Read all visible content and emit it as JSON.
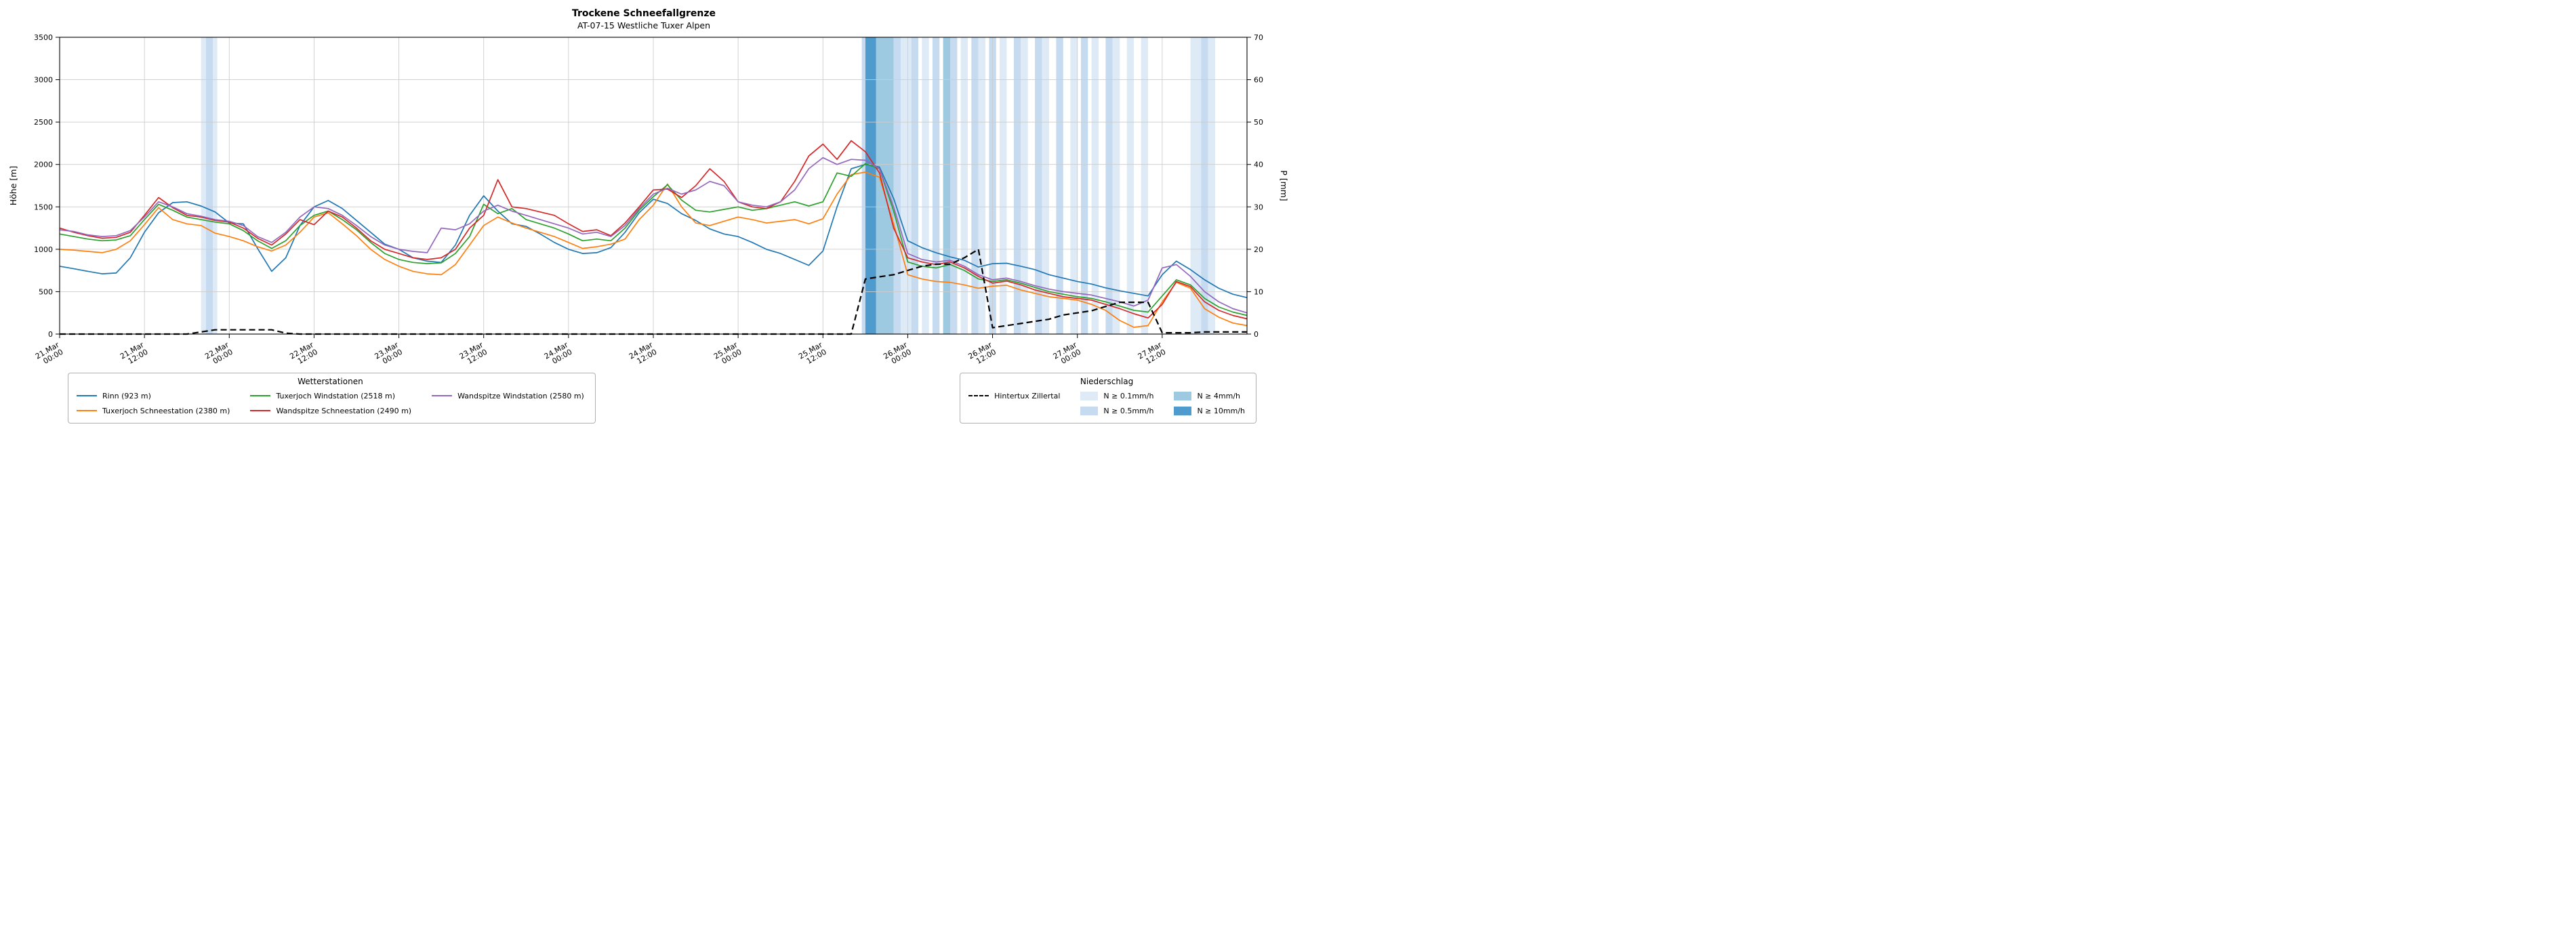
{
  "title": "Trockene Schneefallgrenze",
  "subtitle": "AT-07-15 Westliche Tuxer Alpen",
  "axes": {
    "y_left_label": "Höhe [m]",
    "y_right_label": "P [mm]",
    "y_left_ticks": [
      0,
      500,
      1000,
      1500,
      2000,
      2500,
      3000,
      3500
    ],
    "y_right_ticks": [
      0,
      10,
      20,
      30,
      40,
      50,
      60,
      70
    ],
    "x_tick_hours": [
      0,
      12,
      24,
      36,
      48,
      60,
      72,
      84,
      96,
      108,
      120,
      132,
      144,
      156
    ],
    "x_tick_labels": [
      "21.Mar 00:00",
      "21.Mar 12:00",
      "22.Mar 00:00",
      "22.Mar 12:00",
      "23.Mar 00:00",
      "23.Mar 12:00",
      "24.Mar 00:00",
      "24.Mar 12:00",
      "25.Mar 00:00",
      "25.Mar 12:00",
      "26.Mar 00:00",
      "26.Mar 12:00",
      "27.Mar 00:00",
      "27.Mar 12:00"
    ]
  },
  "chart_data": {
    "type": "line",
    "title": "Trockene Schneefallgrenze",
    "subtitle": "AT-07-15 Westliche Tuxer Alpen",
    "xlabel": "",
    "ylabel_left": "Höhe [m]",
    "ylabel_right": "P [mm]",
    "x_unit": "hours since 21 Mar 00:00",
    "x_range": [
      0,
      168
    ],
    "ylim_left": [
      0,
      3500
    ],
    "ylim_right": [
      0,
      70
    ],
    "grid": true,
    "x": [
      0,
      2,
      4,
      6,
      8,
      10,
      12,
      14,
      16,
      18,
      20,
      22,
      24,
      26,
      28,
      30,
      32,
      34,
      36,
      38,
      40,
      42,
      44,
      46,
      48,
      50,
      52,
      54,
      56,
      58,
      60,
      62,
      64,
      66,
      68,
      70,
      72,
      74,
      76,
      78,
      80,
      82,
      84,
      86,
      88,
      90,
      92,
      94,
      96,
      98,
      100,
      102,
      104,
      106,
      108,
      110,
      112,
      114,
      116,
      118,
      120,
      122,
      124,
      126,
      128,
      130,
      132,
      134,
      136,
      138,
      140,
      142,
      144,
      146,
      148,
      150,
      152,
      154,
      156,
      158,
      160,
      162,
      164,
      166,
      168
    ],
    "series": [
      {
        "name": "Rinn (923 m)",
        "color": "#1f77b4",
        "axis": "left",
        "style": "solid",
        "values": [
          800,
          770,
          740,
          710,
          720,
          900,
          1200,
          1430,
          1550,
          1560,
          1510,
          1440,
          1310,
          1300,
          1010,
          740,
          900,
          1280,
          1500,
          1575,
          1480,
          1340,
          1200,
          1060,
          1000,
          900,
          860,
          845,
          1050,
          1400,
          1630,
          1450,
          1300,
          1270,
          1180,
          1080,
          1000,
          950,
          960,
          1020,
          1200,
          1430,
          1590,
          1540,
          1420,
          1340,
          1240,
          1180,
          1150,
          1080,
          1000,
          950,
          880,
          810,
          980,
          1500,
          1950,
          2000,
          1970,
          1600,
          1100,
          1020,
          960,
          910,
          870,
          790,
          830,
          835,
          800,
          760,
          700,
          660,
          620,
          590,
          545,
          510,
          480,
          450,
          700,
          860,
          760,
          640,
          540,
          470,
          430
        ]
      },
      {
        "name": "Tuxerjoch Schneestation (2380 m)",
        "color": "#ff7f0e",
        "axis": "left",
        "style": "solid",
        "values": [
          1000,
          990,
          975,
          960,
          1000,
          1100,
          1290,
          1490,
          1350,
          1300,
          1280,
          1190,
          1150,
          1100,
          1030,
          980,
          1050,
          1200,
          1380,
          1430,
          1300,
          1160,
          1000,
          880,
          800,
          740,
          710,
          700,
          820,
          1050,
          1280,
          1380,
          1310,
          1250,
          1200,
          1150,
          1080,
          1010,
          1030,
          1060,
          1120,
          1350,
          1520,
          1770,
          1500,
          1310,
          1280,
          1330,
          1380,
          1350,
          1310,
          1330,
          1350,
          1300,
          1360,
          1650,
          1880,
          1910,
          1850,
          1300,
          700,
          650,
          620,
          610,
          580,
          540,
          565,
          575,
          520,
          480,
          440,
          420,
          400,
          350,
          280,
          160,
          80,
          100,
          380,
          610,
          540,
          300,
          200,
          130,
          100
        ]
      },
      {
        "name": "Tuxerjoch Windstation (2518 m)",
        "color": "#2ca02c",
        "axis": "left",
        "style": "solid",
        "values": [
          1180,
          1150,
          1120,
          1100,
          1110,
          1160,
          1350,
          1530,
          1460,
          1380,
          1350,
          1320,
          1300,
          1220,
          1100,
          1010,
          1100,
          1280,
          1400,
          1450,
          1350,
          1230,
          1080,
          950,
          880,
          845,
          830,
          840,
          950,
          1150,
          1530,
          1420,
          1480,
          1350,
          1300,
          1250,
          1180,
          1100,
          1120,
          1100,
          1250,
          1460,
          1620,
          1760,
          1580,
          1460,
          1440,
          1470,
          1500,
          1460,
          1480,
          1520,
          1560,
          1510,
          1560,
          1900,
          1860,
          2010,
          1950,
          1450,
          850,
          800,
          780,
          820,
          750,
          650,
          620,
          640,
          600,
          550,
          500,
          470,
          440,
          420,
          380,
          330,
          280,
          260,
          450,
          640,
          580,
          420,
          320,
          260,
          220
        ]
      },
      {
        "name": "Wandspitze Schneestation (2490 m)",
        "color": "#d62728",
        "axis": "left",
        "style": "solid",
        "values": [
          1250,
          1200,
          1160,
          1130,
          1140,
          1200,
          1400,
          1610,
          1490,
          1400,
          1380,
          1340,
          1320,
          1250,
          1130,
          1050,
          1180,
          1350,
          1290,
          1450,
          1380,
          1250,
          1100,
          1000,
          950,
          900,
          880,
          900,
          1000,
          1250,
          1400,
          1820,
          1500,
          1480,
          1440,
          1400,
          1300,
          1210,
          1230,
          1160,
          1310,
          1500,
          1700,
          1710,
          1610,
          1750,
          1950,
          1800,
          1560,
          1500,
          1480,
          1560,
          1800,
          2100,
          2240,
          2060,
          2280,
          2150,
          1900,
          1250,
          900,
          850,
          820,
          850,
          780,
          680,
          600,
          625,
          580,
          520,
          480,
          440,
          420,
          400,
          350,
          300,
          240,
          190,
          350,
          620,
          560,
          380,
          280,
          220,
          180
        ]
      },
      {
        "name": "Wandspitze Windstation (2580 m)",
        "color": "#9467bd",
        "axis": "left",
        "style": "solid",
        "values": [
          1230,
          1210,
          1170,
          1150,
          1160,
          1220,
          1380,
          1560,
          1500,
          1420,
          1390,
          1350,
          1330,
          1280,
          1150,
          1080,
          1200,
          1380,
          1500,
          1480,
          1400,
          1280,
          1150,
          1050,
          1000,
          975,
          960,
          1250,
          1230,
          1300,
          1450,
          1520,
          1450,
          1400,
          1350,
          1300,
          1250,
          1180,
          1200,
          1150,
          1280,
          1480,
          1650,
          1720,
          1650,
          1700,
          1800,
          1750,
          1560,
          1520,
          1500,
          1560,
          1700,
          1950,
          2080,
          2000,
          2060,
          2050,
          1950,
          1500,
          950,
          880,
          850,
          870,
          800,
          700,
          640,
          660,
          620,
          570,
          530,
          500,
          480,
          460,
          420,
          380,
          330,
          400,
          780,
          820,
          680,
          500,
          380,
          300,
          250
        ]
      },
      {
        "name": "Hintertux Zillertal",
        "color": "#000000",
        "axis": "right",
        "style": "dashed",
        "values": [
          0,
          0,
          0,
          0,
          0,
          0,
          0,
          0,
          0,
          0,
          0.5,
          1,
          1,
          1,
          1,
          1,
          0.2,
          0,
          0,
          0,
          0,
          0,
          0,
          0,
          0,
          0,
          0,
          0,
          0,
          0,
          0,
          0,
          0,
          0,
          0,
          0,
          0,
          0,
          0,
          0,
          0,
          0,
          0,
          0,
          0,
          0,
          0,
          0,
          0,
          0,
          0,
          0,
          0,
          0,
          0,
          0,
          0,
          13,
          13.5,
          14,
          15,
          16,
          16.5,
          16.5,
          18,
          20,
          1.5,
          2,
          2.5,
          3,
          3.5,
          4.5,
          5,
          5.5,
          6.5,
          7.5,
          7.5,
          7.5,
          0.3,
          0.3,
          0.3,
          0.5,
          0.5,
          0.5,
          0.5
        ]
      }
    ],
    "precip_bands": [
      {
        "start": 20,
        "end": 20.7,
        "level": "0.1"
      },
      {
        "start": 20.7,
        "end": 21.7,
        "level": "0.5"
      },
      {
        "start": 21.7,
        "end": 22.3,
        "level": "0.1"
      },
      {
        "start": 113.5,
        "end": 114,
        "level": "0.5"
      },
      {
        "start": 114,
        "end": 115.5,
        "level": "10"
      },
      {
        "start": 115.5,
        "end": 118,
        "level": "4"
      },
      {
        "start": 118,
        "end": 119,
        "level": "0.5"
      },
      {
        "start": 119,
        "end": 120.5,
        "level": "0.1"
      },
      {
        "start": 120.5,
        "end": 121.5,
        "level": "0.5"
      },
      {
        "start": 122,
        "end": 123,
        "level": "0.1"
      },
      {
        "start": 123.5,
        "end": 124.5,
        "level": "0.5"
      },
      {
        "start": 125,
        "end": 126,
        "level": "4"
      },
      {
        "start": 126,
        "end": 127,
        "level": "0.5"
      },
      {
        "start": 127.5,
        "end": 128.5,
        "level": "0.1"
      },
      {
        "start": 129,
        "end": 130,
        "level": "0.5"
      },
      {
        "start": 130,
        "end": 131,
        "level": "0.1"
      },
      {
        "start": 131.5,
        "end": 132.5,
        "level": "0.5"
      },
      {
        "start": 133,
        "end": 134,
        "level": "0.1"
      },
      {
        "start": 135,
        "end": 136,
        "level": "0.5"
      },
      {
        "start": 136,
        "end": 137,
        "level": "0.1"
      },
      {
        "start": 138,
        "end": 139,
        "level": "0.5"
      },
      {
        "start": 139,
        "end": 140,
        "level": "0.1"
      },
      {
        "start": 141,
        "end": 142,
        "level": "0.5"
      },
      {
        "start": 143,
        "end": 144,
        "level": "0.1"
      },
      {
        "start": 144.5,
        "end": 145.5,
        "level": "0.5"
      },
      {
        "start": 146,
        "end": 147,
        "level": "0.1"
      },
      {
        "start": 148,
        "end": 149,
        "level": "0.5"
      },
      {
        "start": 149,
        "end": 150,
        "level": "0.1"
      },
      {
        "start": 151,
        "end": 152,
        "level": "0.1"
      },
      {
        "start": 153,
        "end": 154,
        "level": "0.1"
      },
      {
        "start": 160,
        "end": 161.5,
        "level": "0.1"
      },
      {
        "start": 161.5,
        "end": 162.5,
        "level": "0.5"
      },
      {
        "start": 162.5,
        "end": 163.5,
        "level": "0.1"
      }
    ],
    "band_colors": {
      "0.1": "#deebf7",
      "0.5": "#c6dbef",
      "4": "#9ecae1",
      "10": "#4f9bce"
    },
    "legend_position": "below"
  },
  "legend_stations": {
    "title": "Wetterstationen",
    "items": [
      {
        "label": "Rinn (923 m)",
        "color": "#1f77b4"
      },
      {
        "label": "Tuxerjoch Schneestation (2380 m)",
        "color": "#ff7f0e"
      },
      {
        "label": "Tuxerjoch Windstation (2518 m)",
        "color": "#2ca02c"
      },
      {
        "label": "Wandspitze Schneestation (2490 m)",
        "color": "#d62728"
      },
      {
        "label": "Wandspitze Windstation (2580 m)",
        "color": "#9467bd"
      }
    ]
  },
  "legend_precip": {
    "title": "Niederschlag",
    "items": [
      {
        "label": "Hintertux Zillertal",
        "type": "dashed-line"
      },
      {
        "label": "N ≥ 0.1mm/h",
        "type": "swatch",
        "level": "0.1"
      },
      {
        "label": "N ≥ 0.5mm/h",
        "type": "swatch",
        "level": "0.5"
      },
      {
        "label": "N ≥ 4mm/h",
        "type": "swatch",
        "level": "4"
      },
      {
        "label": "N ≥ 10mm/h",
        "type": "swatch",
        "level": "10"
      }
    ]
  }
}
